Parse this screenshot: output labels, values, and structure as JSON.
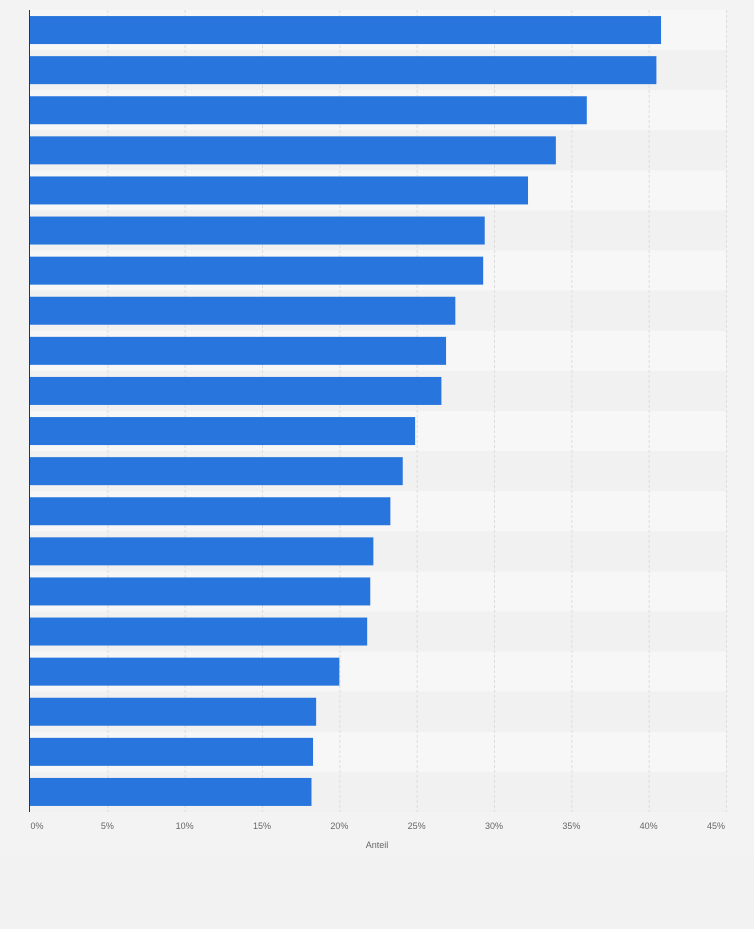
{
  "chart_data": {
    "type": "bar",
    "orientation": "horizontal",
    "title": "",
    "xlabel": "Anteil",
    "ylabel": "",
    "xlim": [
      0,
      45
    ],
    "tick_values": [
      0,
      5,
      10,
      15,
      20,
      25,
      30,
      35,
      40,
      45
    ],
    "tick_labels": [
      "0%",
      "5%",
      "10%",
      "15%",
      "20%",
      "25%",
      "30%",
      "35%",
      "40%",
      "45%"
    ],
    "values": [
      40.8,
      40.5,
      36.0,
      34.0,
      32.2,
      29.4,
      29.3,
      27.5,
      26.9,
      26.6,
      24.9,
      24.1,
      23.3,
      22.2,
      22.0,
      21.8,
      20.0,
      18.5,
      18.3,
      18.2
    ],
    "grid": true,
    "colors": {
      "bar": "#2876dd",
      "band_light": "#f7f7f7",
      "band_dark": "#f1f1f1",
      "grid": "#dddddd",
      "axis": "#333333"
    }
  }
}
